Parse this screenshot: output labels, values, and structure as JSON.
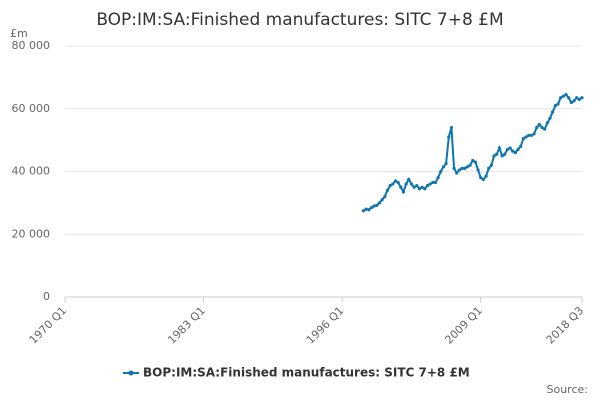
{
  "chart_data": {
    "type": "line",
    "title": "BOP:IM:SA:Finished manufactures: SITC 7+8 £M",
    "y_label": "£m",
    "source": "Source:",
    "categories": [
      "1970 Q1",
      null,
      null,
      null,
      null,
      null,
      null,
      null,
      null,
      null,
      null,
      null,
      null,
      null,
      null,
      null,
      null,
      null,
      null,
      null,
      null,
      null,
      null,
      null,
      null,
      null,
      null,
      null,
      null,
      null,
      null,
      null,
      null,
      null,
      null,
      null,
      null,
      null,
      null,
      null,
      null,
      null,
      null,
      null,
      null,
      null,
      null,
      null,
      null,
      null,
      null,
      null,
      "1983 Q1",
      null,
      null,
      null,
      null,
      null,
      null,
      null,
      null,
      null,
      null,
      null,
      null,
      null,
      null,
      null,
      null,
      null,
      null,
      null,
      null,
      null,
      null,
      null,
      null,
      null,
      null,
      null,
      null,
      null,
      null,
      null,
      null,
      null,
      null,
      null,
      null,
      null,
      null,
      null,
      null,
      null,
      null,
      null,
      null,
      null,
      null,
      null,
      null,
      null,
      null,
      null,
      "1996 Q1",
      null,
      null,
      null,
      null,
      null,
      null,
      null,
      null,
      null,
      null,
      null,
      null,
      null,
      null,
      null,
      null,
      null,
      null,
      null,
      null,
      null,
      null,
      null,
      null,
      null,
      null,
      null,
      null,
      null,
      null,
      null,
      null,
      null,
      null,
      null,
      null,
      null,
      null,
      null,
      null,
      null,
      null,
      null,
      null,
      null,
      null,
      null,
      null,
      null,
      null,
      null,
      "2009 Q1",
      null,
      null,
      null,
      null,
      null,
      null,
      null,
      null,
      null,
      null,
      null,
      null,
      null,
      null,
      null,
      null,
      null,
      null,
      null,
      null,
      null,
      null,
      null,
      null,
      null,
      null,
      null,
      null,
      null,
      null,
      null,
      null,
      null,
      null,
      null,
      null,
      null,
      "2018 Q3"
    ],
    "series": [
      {
        "name": "BOP:IM:SA:Finished manufactures: SITC 7+8 £M",
        "color": "#0f75b0",
        "values": [
          null,
          null,
          null,
          null,
          null,
          null,
          null,
          null,
          null,
          null,
          null,
          null,
          null,
          null,
          null,
          null,
          null,
          null,
          null,
          null,
          null,
          null,
          null,
          null,
          null,
          null,
          null,
          null,
          null,
          null,
          null,
          null,
          null,
          null,
          null,
          null,
          null,
          null,
          null,
          null,
          null,
          null,
          null,
          null,
          null,
          null,
          null,
          null,
          null,
          null,
          null,
          null,
          null,
          null,
          null,
          null,
          null,
          null,
          null,
          null,
          null,
          null,
          null,
          null,
          null,
          null,
          null,
          null,
          null,
          null,
          null,
          null,
          null,
          null,
          null,
          null,
          null,
          null,
          null,
          null,
          null,
          null,
          null,
          null,
          null,
          null,
          null,
          null,
          null,
          null,
          null,
          null,
          null,
          null,
          null,
          null,
          null,
          null,
          null,
          null,
          null,
          null,
          null,
          null,
          null,
          null,
          null,
          null,
          null,
          null,
          null,
          null,
          27500,
          28000,
          27800,
          28500,
          29000,
          29200,
          30000,
          31000,
          32000,
          34000,
          35500,
          36000,
          37000,
          36500,
          35000,
          33500,
          36000,
          37500,
          36000,
          35000,
          35500,
          34500,
          35000,
          34500,
          35500,
          36000,
          36500,
          36500,
          38000,
          40000,
          41500,
          42500,
          51000,
          54000,
          41000,
          39500,
          40500,
          41000,
          41000,
          41500,
          42000,
          43500,
          43000,
          40500,
          38000,
          37500,
          38500,
          41000,
          42000,
          45000,
          45500,
          47500,
          45000,
          45500,
          47000,
          47500,
          46500,
          46000,
          47000,
          48000,
          50500,
          51000,
          51500,
          51500,
          52000,
          54000,
          55000,
          54000,
          53500,
          55500,
          57000,
          59000,
          61000,
          61500,
          63500,
          64000,
          64500,
          63500,
          62000,
          62500,
          63500,
          63000,
          63500
        ]
      }
    ],
    "ylim": [
      0,
      80000
    ],
    "yticks": [
      0,
      {
        "value": 20000,
        "label": "20 000"
      },
      {
        "value": 40000,
        "label": "40 000"
      },
      {
        "value": 60000,
        "label": "60 000"
      },
      {
        "value": 80000,
        "label": "80 000"
      }
    ],
    "grid": true,
    "legend": "bottom"
  }
}
